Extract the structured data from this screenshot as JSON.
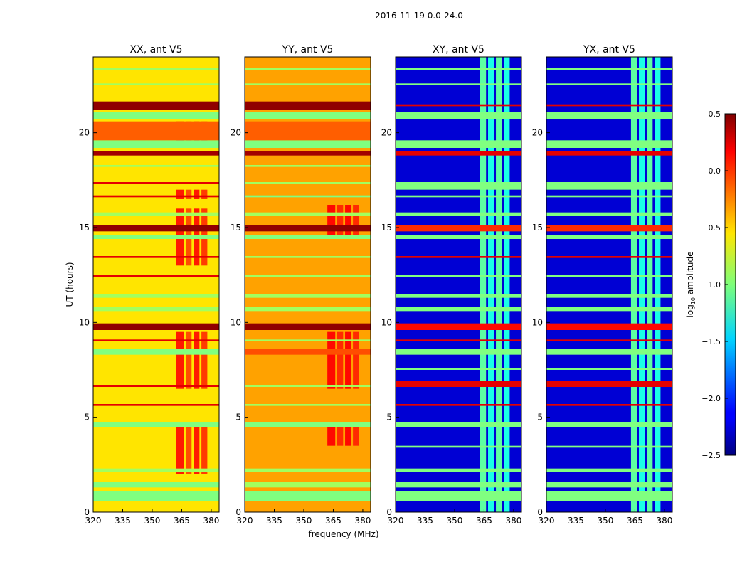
{
  "chart_data": {
    "type": "heatmap",
    "suptitle": "2016-11-19 0.0-24.0",
    "xlabel": "frequency (MHz)",
    "ylabel": "UT (hours)",
    "xlim": [
      320,
      384
    ],
    "ylim": [
      0,
      24
    ],
    "xticks": [
      "320",
      "335",
      "350",
      "365",
      "380"
    ],
    "xtick_values": [
      320,
      335,
      350,
      365,
      380
    ],
    "yticks": [
      "0",
      "5",
      "10",
      "15",
      "20"
    ],
    "ytick_values": [
      0,
      5,
      10,
      15,
      20
    ],
    "colorbar": {
      "label_prefix": "log",
      "label_sub": "10",
      "label_suffix": " amplitude",
      "range": [
        -2.5,
        0.5
      ],
      "colormap": "jet",
      "ticks": [
        "0.5",
        "0.0",
        "−0.5",
        "−1.0",
        "−1.5",
        "−2.0",
        "−2.5"
      ],
      "tick_values": [
        0.5,
        0.0,
        -0.5,
        -1.0,
        -1.5,
        -2.0,
        -2.5
      ]
    },
    "panels": [
      {
        "title": "XX, ant V5",
        "base": -0.55,
        "columns": [
          [
            362,
            366,
            0.05
          ],
          [
            367,
            370,
            -0.1
          ],
          [
            371,
            374,
            0.05
          ],
          [
            375,
            378,
            -0.05
          ]
        ],
        "column_hours": [
          [
            2,
            4.5
          ],
          [
            6.5,
            9.5
          ],
          [
            13,
            16
          ],
          [
            16.5,
            17
          ],
          [
            19.5,
            20.6
          ]
        ],
        "bands": [
          [
            0.6,
            1.1,
            -1.0
          ],
          [
            1.3,
            1.6,
            -1.0
          ],
          [
            2.1,
            2.3,
            -0.9
          ],
          [
            4.5,
            4.75,
            -1.0
          ],
          [
            5.6,
            5.7,
            0.2
          ],
          [
            6.6,
            6.7,
            0.2
          ],
          [
            8.3,
            8.6,
            -1.0
          ],
          [
            9.0,
            9.1,
            0.2
          ],
          [
            9.6,
            9.95,
            0.45
          ],
          [
            10.6,
            10.8,
            -0.9
          ],
          [
            11.3,
            11.5,
            -0.9
          ],
          [
            12.4,
            12.5,
            0.2
          ],
          [
            13.4,
            13.5,
            0.2
          ],
          [
            14.4,
            14.6,
            -1.0
          ],
          [
            14.8,
            15.15,
            0.45
          ],
          [
            15.6,
            15.8,
            -0.9
          ],
          [
            16.6,
            16.7,
            0.2
          ],
          [
            17.3,
            17.4,
            0.2
          ],
          [
            18.2,
            18.3,
            -0.9
          ],
          [
            18.8,
            19.05,
            0.4
          ],
          [
            19.2,
            19.6,
            -1.0
          ],
          [
            19.6,
            20.6,
            -0.15
          ],
          [
            20.7,
            21.1,
            -1.0
          ],
          [
            21.2,
            21.65,
            0.45
          ],
          [
            22.5,
            22.6,
            -0.9
          ],
          [
            23.3,
            23.4,
            -0.9
          ]
        ]
      },
      {
        "title": "YY, ant V5",
        "base": -0.35,
        "columns": [
          [
            362,
            366,
            0.1
          ],
          [
            367,
            370,
            0.0
          ],
          [
            371,
            374,
            0.1
          ],
          [
            375,
            378,
            0.0
          ]
        ],
        "column_hours": [
          [
            3.5,
            4.5
          ],
          [
            6.5,
            9.5
          ],
          [
            14.5,
            16.2
          ]
        ],
        "bands": [
          [
            0.6,
            1.1,
            -1.0
          ],
          [
            1.3,
            1.6,
            -0.9
          ],
          [
            2.1,
            2.3,
            -0.9
          ],
          [
            4.5,
            4.75,
            -1.0
          ],
          [
            5.6,
            5.7,
            -0.9
          ],
          [
            6.6,
            6.7,
            -0.9
          ],
          [
            8.3,
            8.6,
            -0.1
          ],
          [
            9.0,
            9.1,
            -0.9
          ],
          [
            9.6,
            9.95,
            0.45
          ],
          [
            10.6,
            10.8,
            -0.9
          ],
          [
            11.3,
            11.5,
            -0.9
          ],
          [
            12.4,
            12.5,
            -0.9
          ],
          [
            13.4,
            13.5,
            -0.9
          ],
          [
            14.4,
            14.6,
            -1.0
          ],
          [
            14.8,
            15.15,
            0.45
          ],
          [
            15.6,
            15.8,
            -0.9
          ],
          [
            16.6,
            16.7,
            -1.0
          ],
          [
            17.3,
            17.4,
            -0.9
          ],
          [
            18.2,
            18.3,
            -0.9
          ],
          [
            18.8,
            19.05,
            0.4
          ],
          [
            19.2,
            19.6,
            -1.0
          ],
          [
            19.6,
            20.6,
            -0.15
          ],
          [
            20.7,
            21.1,
            -1.0
          ],
          [
            21.2,
            21.65,
            0.45
          ],
          [
            22.5,
            22.6,
            -0.9
          ],
          [
            23.3,
            23.4,
            -0.9
          ]
        ]
      },
      {
        "title": "XY, ant V5",
        "base": -2.25,
        "columns": [
          [
            363,
            366,
            -1.1
          ],
          [
            367,
            370,
            -1.3
          ],
          [
            371,
            374,
            -1.1
          ],
          [
            375,
            378,
            -1.3
          ]
        ],
        "column_hours": [
          [
            0,
            24
          ]
        ],
        "bands": [
          [
            0.6,
            1.1,
            -1.0
          ],
          [
            1.3,
            1.6,
            -1.0
          ],
          [
            2.1,
            2.3,
            -1.0
          ],
          [
            3.4,
            3.5,
            -1.0
          ],
          [
            4.5,
            4.75,
            -1.0
          ],
          [
            5.6,
            5.7,
            0.2
          ],
          [
            6.6,
            6.9,
            0.2
          ],
          [
            7.5,
            7.6,
            -1.0
          ],
          [
            8.3,
            8.6,
            -1.0
          ],
          [
            9.0,
            9.1,
            0.2
          ],
          [
            9.6,
            9.95,
            0.1
          ],
          [
            10.6,
            10.8,
            -1.0
          ],
          [
            11.3,
            11.5,
            -1.0
          ],
          [
            12.4,
            12.5,
            -1.0
          ],
          [
            13.4,
            13.5,
            0.2
          ],
          [
            14.4,
            14.6,
            -1.0
          ],
          [
            14.8,
            15.15,
            0.0
          ],
          [
            15.6,
            15.8,
            -1.0
          ],
          [
            16.6,
            16.7,
            -1.0
          ],
          [
            17.0,
            17.4,
            -1.0
          ],
          [
            18.8,
            19.05,
            0.2
          ],
          [
            19.2,
            19.6,
            -1.0
          ],
          [
            20.7,
            21.1,
            -1.0
          ],
          [
            21.4,
            21.5,
            0.2
          ],
          [
            22.5,
            22.6,
            -1.0
          ],
          [
            23.3,
            23.4,
            -1.0
          ]
        ]
      },
      {
        "title": "YX, ant V5",
        "base": -2.25,
        "columns": [
          [
            363,
            366,
            -1.1
          ],
          [
            367,
            370,
            -1.3
          ],
          [
            371,
            374,
            -1.1
          ],
          [
            375,
            378,
            -1.3
          ]
        ],
        "column_hours": [
          [
            0,
            24
          ]
        ],
        "bands": [
          [
            0.6,
            1.1,
            -1.0
          ],
          [
            1.3,
            1.6,
            -1.0
          ],
          [
            2.1,
            2.3,
            -1.0
          ],
          [
            3.4,
            3.5,
            -1.0
          ],
          [
            4.5,
            4.75,
            -1.0
          ],
          [
            5.6,
            5.7,
            0.2
          ],
          [
            6.6,
            6.9,
            0.2
          ],
          [
            7.5,
            7.6,
            -1.0
          ],
          [
            8.3,
            8.6,
            -1.0
          ],
          [
            9.0,
            9.1,
            0.2
          ],
          [
            9.6,
            9.95,
            0.1
          ],
          [
            10.6,
            10.8,
            -1.0
          ],
          [
            11.3,
            11.5,
            -1.0
          ],
          [
            12.4,
            12.5,
            -1.0
          ],
          [
            13.4,
            13.5,
            0.2
          ],
          [
            14.4,
            14.6,
            -1.0
          ],
          [
            14.8,
            15.15,
            0.0
          ],
          [
            15.6,
            15.8,
            -1.0
          ],
          [
            16.6,
            16.7,
            -1.0
          ],
          [
            17.0,
            17.4,
            -1.0
          ],
          [
            18.8,
            19.05,
            0.2
          ],
          [
            19.2,
            19.6,
            -1.0
          ],
          [
            20.7,
            21.1,
            -1.0
          ],
          [
            21.4,
            21.5,
            0.2
          ],
          [
            22.5,
            22.6,
            -1.0
          ],
          [
            23.3,
            23.4,
            -1.0
          ]
        ]
      }
    ]
  }
}
